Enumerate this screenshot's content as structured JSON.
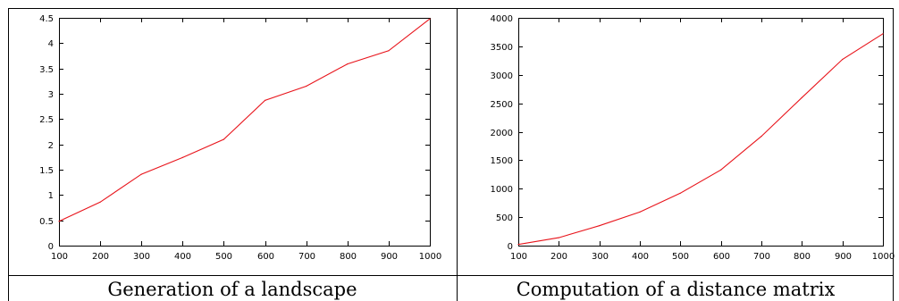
{
  "captions": [
    "Generation of a landscape",
    "Computation of a distance matrix"
  ],
  "colors": {
    "series": "#e8141b",
    "axis": "#000000",
    "background": "#ffffff"
  },
  "chart_data": [
    {
      "type": "line",
      "title": "",
      "xlabel": "",
      "ylabel": "",
      "xlim": [
        100,
        1000
      ],
      "ylim": [
        0,
        4.5
      ],
      "xticks": [
        100,
        200,
        300,
        400,
        500,
        600,
        700,
        800,
        900,
        1000
      ],
      "yticks": [
        0,
        0.5,
        1,
        1.5,
        2,
        2.5,
        3,
        3.5,
        4,
        4.5
      ],
      "grid": false,
      "series": [
        {
          "x": [
            100,
            200,
            300,
            400,
            500,
            600,
            700,
            800,
            900,
            1000
          ],
          "y": [
            0.48,
            0.86,
            1.41,
            1.74,
            2.1,
            2.87,
            3.15,
            3.59,
            3.85,
            4.48
          ]
        }
      ]
    },
    {
      "type": "line",
      "title": "",
      "xlabel": "",
      "ylabel": "",
      "xlim": [
        100,
        1000
      ],
      "ylim": [
        0,
        4000
      ],
      "xticks": [
        100,
        200,
        300,
        400,
        500,
        600,
        700,
        800,
        900,
        1000
      ],
      "yticks": [
        0,
        500,
        1000,
        1500,
        2000,
        2500,
        3000,
        3500,
        4000
      ],
      "grid": false,
      "series": [
        {
          "x": [
            100,
            200,
            300,
            400,
            500,
            600,
            700,
            800,
            900,
            1000
          ],
          "y": [
            20,
            140,
            350,
            590,
            920,
            1330,
            1920,
            2600,
            3270,
            3720
          ]
        }
      ]
    }
  ]
}
